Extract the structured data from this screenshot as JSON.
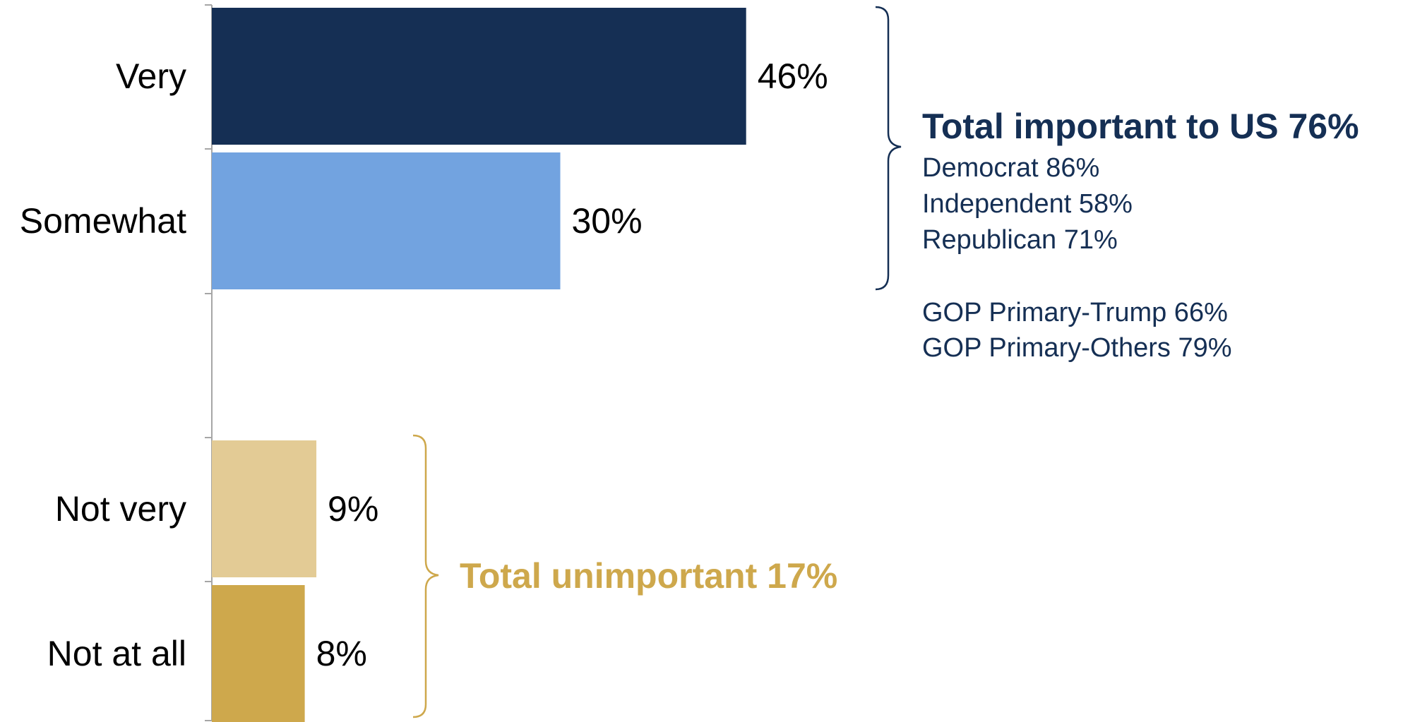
{
  "chart_data": {
    "type": "bar",
    "orientation": "horizontal",
    "categories": [
      "Very",
      "Somewhat",
      "Not very",
      "Not at all"
    ],
    "values": [
      46,
      30,
      9,
      8
    ],
    "value_labels": [
      "46%",
      "30%",
      "9%",
      "8%"
    ],
    "xlim": [
      0,
      100
    ],
    "grid": false,
    "colors": [
      "#152f54",
      "#72a3e0",
      "#e3cb95",
      "#cea84c"
    ],
    "annotations": {
      "important": {
        "title": "Total important to US 76%",
        "lines": [
          "Democrat 86%",
          "Independent 58%",
          "Republican 71%"
        ],
        "extra_lines": [
          "GOP Primary-Trump 66%",
          "GOP Primary-Others 79%"
        ],
        "color": "#152f54"
      },
      "unimportant": {
        "title": "Total unimportant 17%",
        "color": "#cea84c"
      }
    }
  }
}
